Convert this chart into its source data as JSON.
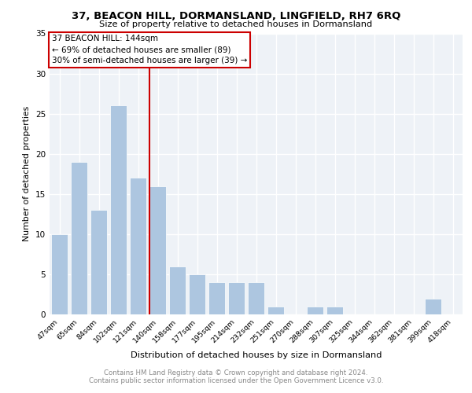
{
  "title1": "37, BEACON HILL, DORMANSLAND, LINGFIELD, RH7 6RQ",
  "title2": "Size of property relative to detached houses in Dormansland",
  "xlabel": "Distribution of detached houses by size in Dormansland",
  "ylabel": "Number of detached properties",
  "categories": [
    "47sqm",
    "65sqm",
    "84sqm",
    "102sqm",
    "121sqm",
    "140sqm",
    "158sqm",
    "177sqm",
    "195sqm",
    "214sqm",
    "232sqm",
    "251sqm",
    "270sqm",
    "288sqm",
    "307sqm",
    "325sqm",
    "344sqm",
    "362sqm",
    "381sqm",
    "399sqm",
    "418sqm"
  ],
  "values": [
    10,
    19,
    13,
    26,
    17,
    16,
    6,
    5,
    4,
    4,
    4,
    1,
    0,
    1,
    1,
    0,
    0,
    0,
    0,
    2,
    0
  ],
  "bar_color": "#adc6e0",
  "highlight_index": 5,
  "highlight_line_color": "#cc0000",
  "annotation_text": "37 BEACON HILL: 144sqm\n← 69% of detached houses are smaller (89)\n30% of semi-detached houses are larger (39) →",
  "ylim": [
    0,
    35
  ],
  "yticks": [
    0,
    5,
    10,
    15,
    20,
    25,
    30,
    35
  ],
  "footer1": "Contains HM Land Registry data © Crown copyright and database right 2024.",
  "footer2": "Contains public sector information licensed under the Open Government Licence v3.0.",
  "background_color": "#eef2f7",
  "grid_color": "#ffffff"
}
